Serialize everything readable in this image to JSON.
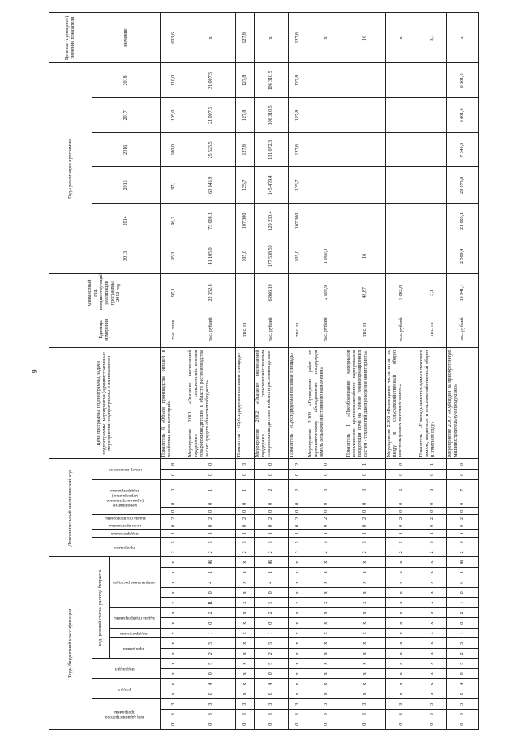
{
  "page_number": "9",
  "header": {
    "codes_group": "Коды бюджетной классификации",
    "admin_code": "код администратора программы",
    "razdel": "раздел",
    "podrazdel": "подраздел",
    "target_article": "код целевой статьи расхода бюджета",
    "ta_program": "программа",
    "ta_subprogram": "подпрограмма",
    "ta_task": "задача подпрограммы",
    "ta_direction": "направление расходов",
    "analytic_group": "Дополнительный аналитический код",
    "an_program": "программа",
    "an_subprogram": "подпрограмма",
    "an_goal": "цели программы",
    "an_task": "задача подпрограммы",
    "an_measure": "мероприятие (административное мероприятие) подпрограммы",
    "an_indicator": "номер показателя",
    "goals_text": "Цели программы, подпрограммы, задачи подпрограммы, мероприятия (административные мероприятия) подпрограммы и их показатели",
    "unit": "Единица измерения",
    "fin_year": "Финансовый год, предшествующий реализации программы, 2012 год",
    "years_group": "Годы реализации программы",
    "years": [
      "2013",
      "2014",
      "2015",
      "2016",
      "2017",
      "2018"
    ],
    "target_group": "Целевое (суммарное) значение показателя",
    "target_value": "значение"
  },
  "rows": [
    {
      "codes": [
        "0",
        "8",
        "3",
        "x",
        "x",
        "x",
        "x",
        "x",
        "x",
        "x",
        "x",
        "x",
        "x",
        "x",
        "x",
        "x",
        "x"
      ],
      "analytic": [
        "2",
        "5",
        "1",
        "0",
        "2",
        "0",
        "0",
        "0",
        "0",
        "8"
      ],
      "text": "Показатель 6 «Объем производства овощей в хозяйствах всех категорий»",
      "unit": "тыс. тонн",
      "fin": "97,3",
      "years": [
        "95,3",
        "96,2",
        "97,1",
        "100,0",
        "105,0",
        "110,0"
      ],
      "target": "603,6"
    },
    {
      "codes": [
        "0",
        "8",
        "3",
        "0",
        "4",
        "0",
        "5",
        "2",
        "5",
        "1",
        "0",
        "2",
        "R",
        "0",
        "4",
        "1",
        "Ж"
      ],
      "analytic": [
        "2",
        "5",
        "1",
        "0",
        "2",
        "0",
        "0",
        "1",
        "0",
        "0"
      ],
      "text": "Мероприятие 2.001 «Оказание несвязанной поддержки сельскохозяйственным товаропроизводителям в области растениеводства за счет средств областного бюджета»",
      "unit": "тыс. рублей",
      "fin": "22 352,8",
      "years": [
        "41 105,0",
        "73 008,1",
        "60 846,9",
        "25 525,5",
        "21 007,5",
        "21 007,5"
      ],
      "target": "x"
    },
    {
      "codes": [
        "0",
        "8",
        "3",
        "x",
        "x",
        "x",
        "x",
        "x",
        "x",
        "x",
        "x",
        "x",
        "x",
        "x",
        "x",
        "x",
        "x"
      ],
      "analytic": [
        "2",
        "5",
        "1",
        "0",
        "2",
        "0",
        "0",
        "1",
        "0",
        "3"
      ],
      "text": "Показатель 1 «Субсидируемая посевная площадь»",
      "unit": "тыс. га",
      "fin": "",
      "years": [
        "105,0",
        "107,300",
        "125,7",
        "127,8",
        "127,8",
        "127,8"
      ],
      "target": "127,8"
    },
    {
      "codes": [
        "0",
        "8",
        "3",
        "0",
        "4",
        "0",
        "5",
        "2",
        "5",
        "1",
        "0",
        "2",
        "5",
        "0",
        "4",
        "1",
        "Ж"
      ],
      "analytic": [
        "2",
        "5",
        "1",
        "0",
        "2",
        "0",
        "0",
        "2",
        "0",
        "0"
      ],
      "text": "Мероприятие 2.002 «Оказание несвязанной поддержки сельскохозяйственным товаропроизводителям в области растениеводства»",
      "unit": "тыс. рублей",
      "fin": "6 866,10",
      "years": [
        "177 538,50",
        "129 230,4",
        "145 479,4",
        "131 072,3",
        "106 310,5",
        "106 310,5"
      ],
      "target": "x"
    },
    {
      "codes": [
        "0",
        "8",
        "3",
        "x",
        "x",
        "x",
        "x",
        "x",
        "x",
        "x",
        "x",
        "x",
        "x",
        "x",
        "x",
        "x",
        "x"
      ],
      "analytic": [
        "2",
        "5",
        "1",
        "0",
        "2",
        "0",
        "0",
        "2",
        "0",
        "2"
      ],
      "text": "Показатель 1 «Субсидируемая посевная площадь»",
      "unit": "тыс. га",
      "fin": "",
      "years": [
        "105,0",
        "107,300",
        "125,7",
        "127,8",
        "127,8",
        "127,8"
      ],
      "target": "127,8"
    },
    {
      "codes": [
        "0",
        "8",
        "3",
        "x",
        "x",
        "x",
        "x",
        "x",
        "x",
        "x",
        "x",
        "x",
        "x",
        "x",
        "x",
        "x",
        "x"
      ],
      "analytic": [
        "2",
        "5",
        "1",
        "0",
        "2",
        "0",
        "0",
        "3",
        "0",
        "0"
      ],
      "text": "Мероприятие 2.003 «Проведение работ по агрохимическому обследованию плодородия земель сельскохозяйственного назначения»",
      "unit": "тыс. рублей",
      "fin": "2 999,9",
      "years": [
        "1 000,0",
        "",
        "",
        "",
        "",
        ""
      ],
      "target": "x"
    },
    {
      "codes": [
        "0",
        "8",
        "3",
        "x",
        "x",
        "x",
        "x",
        "x",
        "x",
        "x",
        "x",
        "x",
        "x",
        "x",
        "x",
        "x",
        "x"
      ],
      "analytic": [
        "2",
        "5",
        "1",
        "0",
        "2",
        "0",
        "0",
        "3",
        "0",
        "1"
      ],
      "text": "Показатель 1 «Преобразование материалов комплексного крупномасштабного картирования плодородия почв на основе геоинформационных систем - технологий для проведения мониторинга»",
      "unit": "тыс. га",
      "fin": "48,87",
      "years": [
        "16",
        "",
        "",
        "",
        "",
        ""
      ],
      "target": "16"
    },
    {
      "codes": [
        "0",
        "8",
        "3",
        "x",
        "x",
        "x",
        "x",
        "x",
        "x",
        "x",
        "x",
        "x",
        "x",
        "x",
        "x",
        "x",
        "x"
      ],
      "analytic": [
        "2",
        "5",
        "1",
        "0",
        "2",
        "0",
        "0",
        "6",
        "0",
        "0"
      ],
      "text": "Мероприятие 2.006 «Возмещение части затрат по вводу в сельскохозяйственный оборот неиспользуемых пахотных земель»",
      "unit": "тыс. рублей",
      "fin": "3 082,9",
      "years": [
        "",
        "",
        "",
        "",
        "",
        ""
      ],
      "target": "x"
    },
    {
      "codes": [
        "0",
        "8",
        "3",
        "x",
        "x",
        "x",
        "x",
        "x",
        "x",
        "x",
        "x",
        "x",
        "x",
        "x",
        "x",
        "x",
        "x"
      ],
      "analytic": [
        "2",
        "5",
        "1",
        "0",
        "2",
        "0",
        "0",
        "6",
        "0",
        "1"
      ],
      "text": "Показатель 1 «Площадь неиспользуемых пахотных земель, введенных в сельскохозяйственный оборот в отчетном году»",
      "unit": "тыс. га",
      "fin": "3,1",
      "years": [
        "",
        "",
        "",
        "",
        "",
        ""
      ],
      "target": "3,1"
    },
    {
      "codes": [
        "0",
        "8",
        "3",
        "0",
        "4",
        "0",
        "5",
        "2",
        "5",
        "1",
        "0",
        "2",
        "1",
        "0",
        "0",
        "1",
        "Ж"
      ],
      "analytic": [
        "2",
        "5",
        "1",
        "0",
        "2",
        "0",
        "0",
        "7",
        "0",
        "0"
      ],
      "text": "Мероприятие 2.007 «Субсидии за приобретенную машиностроительную продукцию»",
      "unit": "тыс. рублей",
      "fin": "19 941,1",
      "years": [
        "2 589,4",
        "21 885,1",
        "29 078,8",
        "7 343,3",
        "6 601,0",
        "6 601,0"
      ],
      "target": "x"
    }
  ]
}
